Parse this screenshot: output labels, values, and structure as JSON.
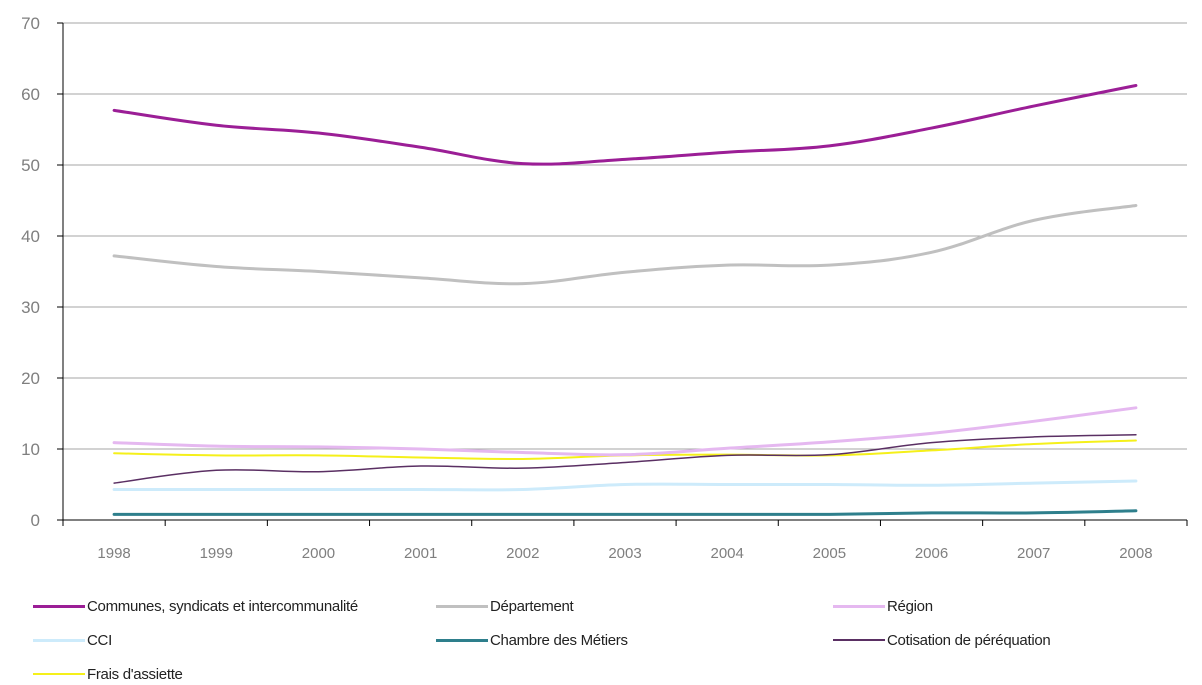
{
  "chart_data": {
    "type": "line",
    "title": "",
    "xlabel": "",
    "ylabel": "",
    "x": [
      "1998",
      "1999",
      "2000",
      "2001",
      "2002",
      "2003",
      "2004",
      "2005",
      "2006",
      "2007",
      "2008"
    ],
    "ylim": [
      0,
      70
    ],
    "yticks": [
      "0",
      "10",
      "20",
      "30",
      "40",
      "50",
      "60",
      "70"
    ],
    "grid": "horizontal",
    "legend_position": "bottom",
    "series": [
      {
        "name": "Communes, syndicats et intercommunalité",
        "color": "#9b1e96",
        "width": 3,
        "values": [
          57.7,
          55.6,
          54.5,
          52.5,
          50.2,
          50.8,
          51.8,
          52.7,
          55.2,
          58.3,
          61.2
        ]
      },
      {
        "name": "Département",
        "color": "#c0c0c0",
        "width": 3,
        "values": [
          37.2,
          35.7,
          35.0,
          34.1,
          33.3,
          34.9,
          35.9,
          35.9,
          37.7,
          42.2,
          44.3
        ]
      },
      {
        "name": "Région",
        "color": "#e5b8f0",
        "width": 3,
        "values": [
          10.9,
          10.4,
          10.3,
          10.0,
          9.5,
          9.2,
          10.1,
          11.0,
          12.2,
          13.9,
          15.8
        ]
      },
      {
        "name": "CCI",
        "color": "#cdebfb",
        "width": 3,
        "values": [
          4.3,
          4.3,
          4.3,
          4.3,
          4.3,
          5.0,
          5.0,
          5.0,
          4.9,
          5.2,
          5.5
        ]
      },
      {
        "name": "Chambre des Métiers",
        "color": "#2e7f8c",
        "width": 3,
        "values": [
          0.8,
          0.8,
          0.8,
          0.8,
          0.8,
          0.8,
          0.8,
          0.8,
          1.0,
          1.0,
          1.3
        ]
      },
      {
        "name": "Cotisation de péréquation",
        "color": "#5a2f63",
        "width": 1.5,
        "values": [
          5.2,
          7.0,
          6.8,
          7.6,
          7.3,
          8.1,
          9.1,
          9.2,
          10.9,
          11.7,
          12.0
        ]
      },
      {
        "name": "Frais d'assiette",
        "color": "#f5f01a",
        "width": 2,
        "values": [
          9.4,
          9.1,
          9.1,
          8.8,
          8.6,
          9.1,
          9.2,
          9.1,
          9.8,
          10.7,
          11.2
        ]
      }
    ]
  }
}
